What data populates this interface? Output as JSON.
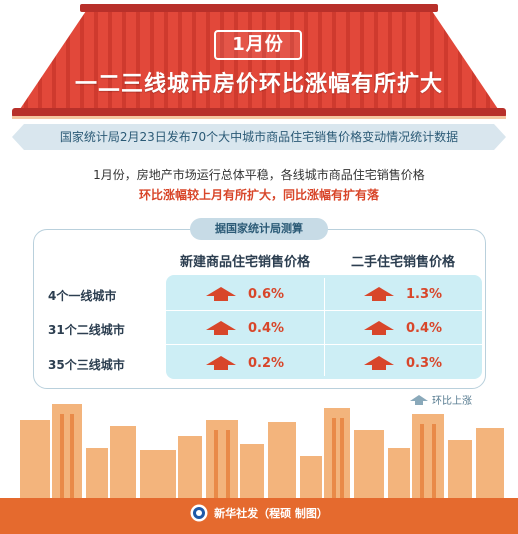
{
  "header": {
    "month_badge": "1月份",
    "title": "一二三线城市房价环比涨幅有所扩大"
  },
  "source_line": "国家统计局2月23日发布70个大中城市商品住宅销售价格变动情况统计数据",
  "summary": {
    "line1": "1月份，房地产市场运行总体平稳，各线城市商品住宅销售价格",
    "line2": "环比涨幅较上月有所扩大，同比涨幅有扩有落"
  },
  "table": {
    "tag": "据国家统计局测算",
    "columns": [
      "新建商品住宅销售价格",
      "二手住宅销售价格"
    ],
    "rows": [
      {
        "city": "4个一线城市",
        "new_home": "0.6%",
        "second_hand": "1.3%"
      },
      {
        "city": "31个二线城市",
        "new_home": "0.4%",
        "second_hand": "0.4%"
      },
      {
        "city": "35个三线城市",
        "new_home": "0.2%",
        "second_hand": "0.3%"
      }
    ]
  },
  "legend": {
    "label": "环比上涨",
    "icon": "up-arrow-icon"
  },
  "footer": {
    "credit": "新华社发（程硕 制图）",
    "logo": "xinhua-logo"
  },
  "colors": {
    "roof_red": "#e2483a",
    "accent_red": "#d8462a",
    "highlight_cyan": "#cdeef5",
    "city_orange": "#f0a566"
  }
}
